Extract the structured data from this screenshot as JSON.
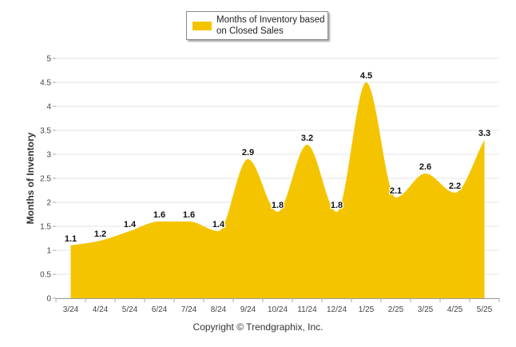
{
  "chart_data": {
    "type": "area",
    "categories": [
      "3/24",
      "4/24",
      "5/24",
      "6/24",
      "7/24",
      "8/24",
      "9/24",
      "10/24",
      "11/24",
      "12/24",
      "1/25",
      "2/25",
      "3/25",
      "4/25",
      "5/25"
    ],
    "series": [
      {
        "name": "Months of Inventory based on Closed Sales",
        "values": [
          1.1,
          1.2,
          1.4,
          1.6,
          1.6,
          1.4,
          2.9,
          1.8,
          3.2,
          1.8,
          4.5,
          2.1,
          2.6,
          2.2,
          3.3
        ],
        "data_labels": [
          "1.1",
          "1.2",
          "1.4",
          "1.6",
          "1.6",
          "1.4",
          "2.9",
          "1.8",
          "3.2",
          "1.8",
          "4.5",
          "2.1",
          "2.6",
          "2.2",
          "3.3"
        ]
      }
    ],
    "ylabel": "Months of Inventory",
    "xlabel": "",
    "ylim": [
      0,
      5
    ],
    "yticks": [
      "0",
      "0.5",
      "1",
      "1.5",
      "2",
      "2.5",
      "3",
      "3.5",
      "4",
      "4.5",
      "5"
    ],
    "grid": true,
    "legend_position": "top",
    "color": "#f5c400"
  },
  "footer": {
    "copyright": "Copyright © Trendgraphix, Inc."
  }
}
